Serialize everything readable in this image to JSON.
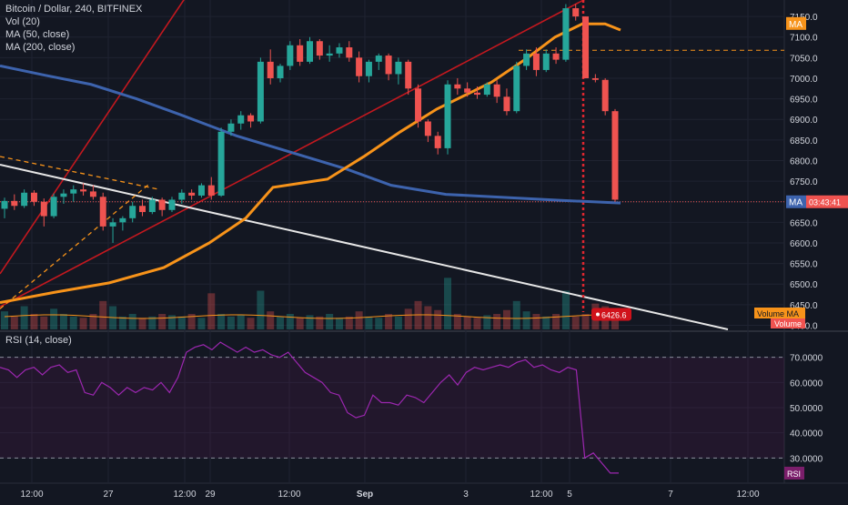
{
  "legend": {
    "title": "Bitcoin / Dollar, 240, BITFINEX",
    "vol": "Vol (20)",
    "ma50": "MA (50, close)",
    "ma200": "MA (200, close)"
  },
  "rsi_legend": "RSI (14, close)",
  "colors": {
    "background": "#131722",
    "up": "#26a69a",
    "down": "#ef5350",
    "ma50": "#f7931a",
    "ma200": "#3d63ad",
    "rsi": "#7b1e6b",
    "trend_red": "#c2181f",
    "trend_white": "#e6e6e6",
    "dash_orange": "#f7931a"
  },
  "chart_data": [
    {
      "type": "candlestick",
      "title": "Bitcoin / Dollar, 240, BITFINEX",
      "ylim": [
        6390,
        7190
      ],
      "y_ticks": [
        7150,
        7100,
        7050,
        7000,
        6950,
        6900,
        6850,
        6800,
        6750,
        6700,
        6650,
        6600,
        6550,
        6500,
        6450,
        6400
      ],
      "y_tick_labels": [
        "7150.0",
        "7100.0",
        "7050.0",
        "7000.0",
        "6950.0",
        "6900.0",
        "6850.0",
        "6800.0",
        "6750.0",
        "6700.0",
        "6650.0",
        "6600.0",
        "6550.0",
        "6500.0",
        "6450.0",
        "6400.0"
      ],
      "x_tick_labels": [
        "12:00",
        "27",
        "12:00",
        "29",
        "12:00",
        "Sep",
        "3",
        "12:00",
        "5",
        "7",
        "12:00"
      ],
      "markers": {
        "ma_upper": {
          "label": "MA",
          "value": 7133
        },
        "last_price": {
          "label": "MA",
          "time": "03:43:41",
          "value": 6700
        },
        "low_label": {
          "value": "6426.6",
          "price": 6426.6
        },
        "vol_ma": "Volume MA",
        "volume": "Volume"
      },
      "candles": [
        [
          6683,
          6710,
          6660,
          6702
        ],
        [
          6702,
          6718,
          6680,
          6690
        ],
        [
          6690,
          6730,
          6685,
          6722
        ],
        [
          6722,
          6728,
          6690,
          6700
        ],
        [
          6700,
          6708,
          6640,
          6665
        ],
        [
          6665,
          6720,
          6660,
          6712
        ],
        [
          6712,
          6730,
          6695,
          6720
        ],
        [
          6720,
          6740,
          6700,
          6730
        ],
        [
          6730,
          6745,
          6715,
          6725
        ],
        [
          6725,
          6740,
          6705,
          6712
        ],
        [
          6712,
          6722,
          6630,
          6640
        ],
        [
          6640,
          6660,
          6600,
          6650
        ],
        [
          6650,
          6665,
          6630,
          6660
        ],
        [
          6660,
          6700,
          6650,
          6690
        ],
        [
          6690,
          6705,
          6665,
          6675
        ],
        [
          6675,
          6712,
          6670,
          6705
        ],
        [
          6705,
          6710,
          6665,
          6680
        ],
        [
          6680,
          6712,
          6675,
          6705
        ],
        [
          6705,
          6730,
          6695,
          6722
        ],
        [
          6722,
          6730,
          6705,
          6715
        ],
        [
          6715,
          6745,
          6710,
          6740
        ],
        [
          6740,
          6760,
          6705,
          6715
        ],
        [
          6715,
          6880,
          6712,
          6870
        ],
        [
          6870,
          6900,
          6860,
          6890
        ],
        [
          6890,
          6920,
          6875,
          6910
        ],
        [
          6910,
          6915,
          6880,
          6895
        ],
        [
          6895,
          7050,
          6890,
          7040
        ],
        [
          7040,
          7070,
          6985,
          7000
        ],
        [
          7000,
          7035,
          6990,
          7030
        ],
        [
          7030,
          7090,
          7020,
          7080
        ],
        [
          7080,
          7095,
          7030,
          7040
        ],
        [
          7040,
          7100,
          7035,
          7090
        ],
        [
          7090,
          7095,
          7045,
          7055
        ],
        [
          7055,
          7080,
          7040,
          7060
        ],
        [
          7060,
          7085,
          7050,
          7075
        ],
        [
          7075,
          7090,
          7040,
          7050
        ],
        [
          7050,
          7065,
          6990,
          7005
        ],
        [
          7005,
          7045,
          6990,
          7040
        ],
        [
          7040,
          7060,
          7020,
          7055
        ],
        [
          7055,
          7060,
          6995,
          7010
        ],
        [
          7010,
          7050,
          6985,
          7040
        ],
        [
          7040,
          7045,
          6960,
          6975
        ],
        [
          6975,
          6985,
          6880,
          6895
        ],
        [
          6895,
          6900,
          6845,
          6860
        ],
        [
          6860,
          6870,
          6815,
          6830
        ],
        [
          6830,
          6995,
          6815,
          6985
        ],
        [
          6985,
          7000,
          6960,
          6975
        ],
        [
          6975,
          6990,
          6955,
          6965
        ],
        [
          6965,
          6980,
          6950,
          6960
        ],
        [
          6960,
          6990,
          6955,
          6985
        ],
        [
          6985,
          6995,
          6940,
          6955
        ],
        [
          6955,
          6975,
          6910,
          6920
        ],
        [
          6920,
          7040,
          6915,
          7030
        ],
        [
          7030,
          7070,
          7020,
          7060
        ],
        [
          7060,
          7075,
          7005,
          7020
        ],
        [
          7020,
          7070,
          7015,
          7060
        ],
        [
          7060,
          7075,
          7035,
          7045
        ],
        [
          7045,
          7180,
          7040,
          7170
        ],
        [
          7170,
          7180,
          7140,
          7150
        ],
        [
          7150,
          7150,
          7000,
          7000
        ],
        [
          7000,
          7010,
          6990,
          6996
        ],
        [
          6996,
          7000,
          6910,
          6920
        ],
        [
          6920,
          6925,
          6700,
          6705
        ]
      ],
      "volume": [
        14,
        10,
        18,
        12,
        10,
        16,
        12,
        10,
        9,
        12,
        22,
        18,
        10,
        12,
        9,
        10,
        12,
        11,
        10,
        12,
        9,
        28,
        12,
        10,
        11,
        9,
        30,
        14,
        10,
        12,
        9,
        11,
        10,
        12,
        9,
        10,
        14,
        10,
        9,
        12,
        10,
        16,
        22,
        18,
        15,
        40,
        12,
        10,
        9,
        11,
        12,
        15,
        22,
        14,
        12,
        10,
        12,
        30,
        10,
        12,
        20,
        18,
        14
      ],
      "ma50": [
        [
          0,
          6455
        ],
        [
          60,
          6480
        ],
        [
          120,
          6503
        ],
        [
          180,
          6540
        ],
        [
          230,
          6600
        ],
        [
          270,
          6660
        ],
        [
          300,
          6735
        ],
        [
          330,
          6745
        ],
        [
          360,
          6755
        ],
        [
          400,
          6810
        ],
        [
          440,
          6870
        ],
        [
          480,
          6925
        ],
        [
          540,
          6990
        ],
        [
          580,
          7050
        ],
        [
          610,
          7100
        ],
        [
          640,
          7132
        ],
        [
          665,
          7132
        ],
        [
          682,
          7117
        ]
      ],
      "ma200": [
        [
          0,
          7030
        ],
        [
          50,
          7007
        ],
        [
          100,
          6985
        ],
        [
          150,
          6950
        ],
        [
          200,
          6910
        ],
        [
          260,
          6860
        ],
        [
          320,
          6820
        ],
        [
          380,
          6780
        ],
        [
          430,
          6740
        ],
        [
          490,
          6718
        ],
        [
          560,
          6710
        ],
        [
          620,
          6703
        ],
        [
          682,
          6697
        ]
      ],
      "ma200_end": [
        [
          645,
          6705
        ],
        [
          682,
          6697
        ]
      ]
    },
    {
      "type": "line",
      "title": "RSI (14, close)",
      "ylim": [
        20,
        80
      ],
      "y_ticks": [
        70,
        60,
        50,
        40,
        30
      ],
      "y_tick_labels": [
        "70.0000",
        "60.0000",
        "50.0000",
        "40.0000",
        "30.0000"
      ],
      "bands": [
        70,
        30
      ],
      "end_label": "RSI",
      "series": [
        {
          "values": [
            66,
            65,
            62,
            65,
            66,
            63,
            66,
            67,
            64,
            65,
            56,
            55,
            60,
            58,
            55,
            58,
            56,
            58,
            57,
            60,
            56,
            62,
            72,
            74,
            75,
            73,
            76,
            74,
            72,
            74,
            72,
            73,
            71,
            70,
            72,
            68,
            64,
            62,
            60,
            56,
            55,
            48,
            46,
            47,
            55,
            52,
            52,
            51,
            55,
            54,
            52,
            56,
            60,
            63,
            59,
            64,
            66,
            65,
            66,
            67,
            66,
            68,
            69,
            66,
            67,
            65,
            64,
            66,
            65,
            30,
            32,
            28,
            24,
            24
          ]
        }
      ]
    }
  ]
}
